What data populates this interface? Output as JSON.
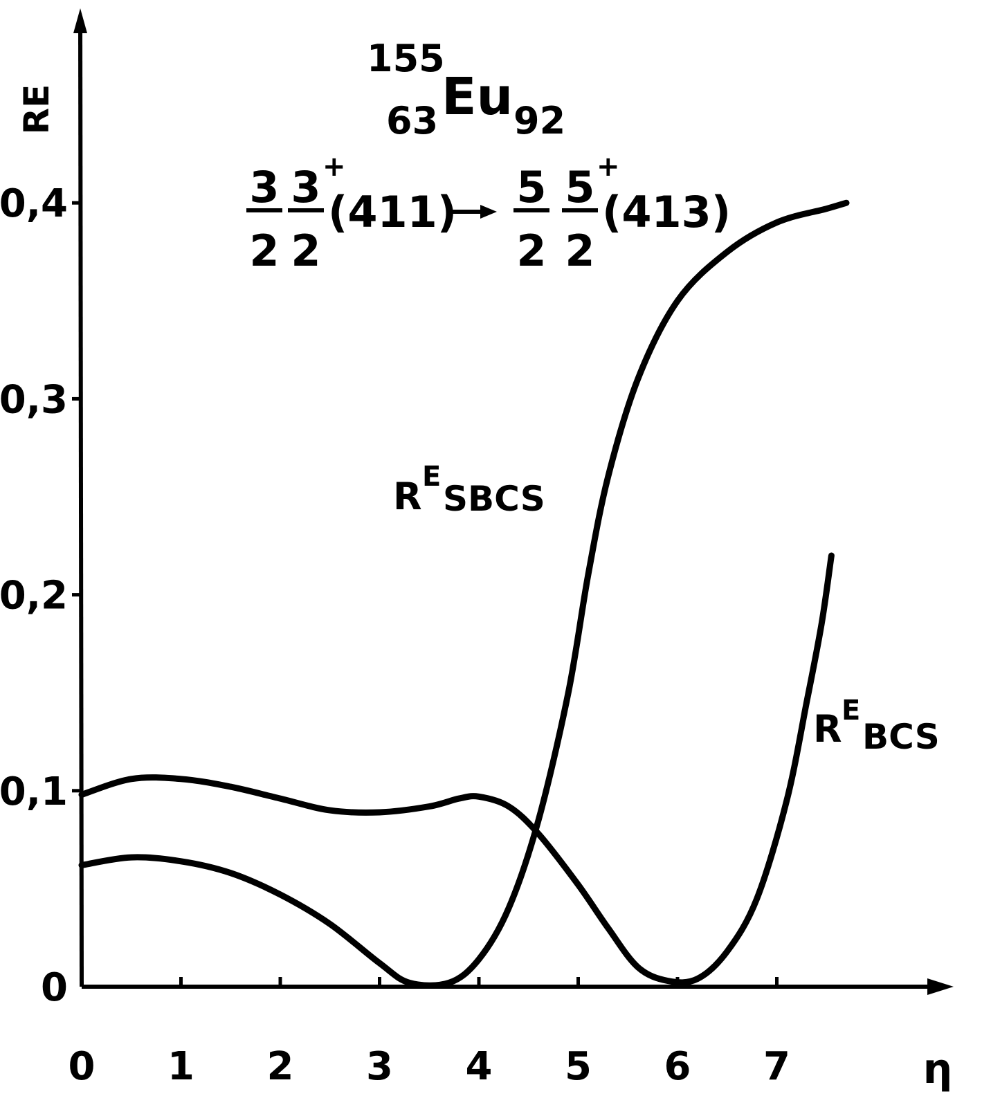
{
  "chart_data": {
    "type": "line",
    "title": {
      "mass_number": "155",
      "element": "Eu",
      "proton_number": "63",
      "neutron_number": "92"
    },
    "transition": {
      "initial": {
        "K_num": "3",
        "K_den": "2",
        "I_num": "3",
        "I_den": "2",
        "parity": "+",
        "nilsson": "(411)"
      },
      "final": {
        "K_num": "5",
        "K_den": "2",
        "I_num": "5",
        "I_den": "2",
        "parity": "+",
        "nilsson": "(413)"
      }
    },
    "ylabel": "RE",
    "xlabel": "η",
    "xlim": [
      0,
      8.5
    ],
    "ylim": [
      0,
      0.46
    ],
    "x_ticks": [
      "0",
      "1",
      "2",
      "3",
      "4",
      "5",
      "6",
      "7"
    ],
    "y_ticks": [
      {
        "value": 0,
        "label": "0"
      },
      {
        "value": 0.1,
        "label": "0,1"
      },
      {
        "value": 0.2,
        "label": "0,2"
      },
      {
        "value": 0.3,
        "label": "0,3"
      },
      {
        "value": 0.4,
        "label": "0,4"
      }
    ],
    "series": [
      {
        "label_main": "R",
        "label_sup": "E",
        "label_sub": "SBCS",
        "points": [
          [
            0,
            0.062
          ],
          [
            0.5,
            0.066
          ],
          [
            1,
            0.064
          ],
          [
            1.5,
            0.058
          ],
          [
            2,
            0.047
          ],
          [
            2.5,
            0.032
          ],
          [
            3,
            0.012
          ],
          [
            3.3,
            0.002
          ],
          [
            3.7,
            0.002
          ],
          [
            4,
            0.014
          ],
          [
            4.3,
            0.04
          ],
          [
            4.6,
            0.085
          ],
          [
            4.9,
            0.15
          ],
          [
            5.1,
            0.21
          ],
          [
            5.3,
            0.26
          ],
          [
            5.6,
            0.31
          ],
          [
            6,
            0.35
          ],
          [
            6.5,
            0.375
          ],
          [
            7,
            0.39
          ],
          [
            7.5,
            0.397
          ],
          [
            7.7,
            0.4
          ]
        ]
      },
      {
        "label_main": "R",
        "label_sup": "E",
        "label_sub": "BCS",
        "points": [
          [
            0,
            0.098
          ],
          [
            0.5,
            0.106
          ],
          [
            1,
            0.106
          ],
          [
            1.5,
            0.102
          ],
          [
            2,
            0.096
          ],
          [
            2.5,
            0.09
          ],
          [
            3,
            0.089
          ],
          [
            3.5,
            0.092
          ],
          [
            3.8,
            0.096
          ],
          [
            4,
            0.097
          ],
          [
            4.3,
            0.092
          ],
          [
            4.6,
            0.078
          ],
          [
            5,
            0.052
          ],
          [
            5.3,
            0.03
          ],
          [
            5.6,
            0.01
          ],
          [
            5.9,
            0.003
          ],
          [
            6.2,
            0.004
          ],
          [
            6.5,
            0.018
          ],
          [
            6.8,
            0.045
          ],
          [
            7.1,
            0.095
          ],
          [
            7.3,
            0.145
          ],
          [
            7.45,
            0.185
          ],
          [
            7.55,
            0.22
          ]
        ]
      }
    ]
  }
}
